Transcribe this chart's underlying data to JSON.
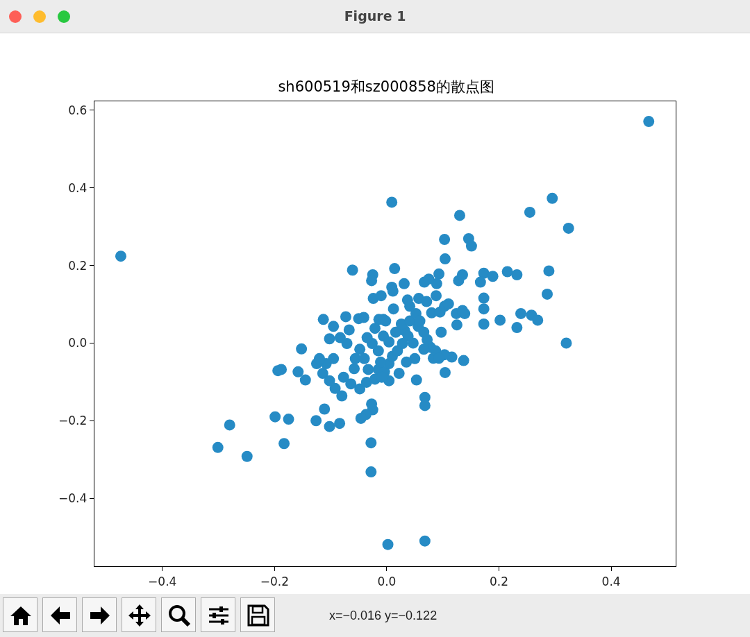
{
  "chart_data": {
    "type": "scatter",
    "title": "sh600519和sz000858的散点图",
    "annotations": [
      "Figure 1",
      "x=−0.016 y=−0.122"
    ],
    "marker": "circle",
    "color": "#268bc5",
    "x": [
      -0.474,
      0.467,
      0.009,
      0.295,
      0.255,
      0.324,
      0.13,
      0.103,
      0.146,
      0.151,
      0.104,
      -0.061,
      -0.025,
      0.014,
      0.215,
      0.232,
      0.289,
      0.286,
      0.32,
      0.202,
      0.232,
      0.239,
      0.258,
      0.269,
      0.173,
      0.189,
      0.173,
      0.173,
      0.173,
      0.137,
      0.104,
      0.053,
      0.068,
      0.068,
      -0.025,
      -0.028,
      -0.028,
      0.002,
      0.068,
      -0.037,
      -0.027,
      -0.102,
      -0.084,
      -0.126,
      -0.111,
      -0.175,
      -0.199,
      -0.183,
      -0.28,
      -0.301,
      -0.249,
      -0.194,
      -0.188,
      -0.152,
      -0.158,
      -0.145,
      -0.113,
      -0.125,
      -0.095,
      -0.073,
      -0.067,
      -0.05,
      -0.041,
      -0.014,
      -0.006,
      0.012,
      0.037,
      0.057,
      0.071,
      0.08,
      0.095,
      0.103,
      0.11,
      0.067,
      0.075,
      0.093,
      0.128,
      0.135,
      0.167,
      0.124,
      0.125,
      0.088,
      0.097,
      0.078,
      0.116,
      0.056,
      -0.027,
      0.009,
      -0.024,
      -0.01,
      -0.095,
      -0.092,
      -0.046,
      0.089,
      0.139,
      0.135,
      0.032,
      0.047,
      0.066,
      0.087,
      0.103,
      0.083,
      0.093,
      0.011,
      0.031,
      -0.108,
      -0.102,
      -0.083,
      -0.12,
      -0.114,
      -0.102,
      -0.08,
      -0.077,
      -0.058,
      -0.064,
      -0.048,
      -0.036,
      -0.021,
      -0.015,
      -0.004,
      0.004,
      0.01,
      0.019,
      -0.015,
      -0.026,
      -0.035,
      -0.048,
      -0.056,
      -0.04,
      -0.006,
      0.004,
      0.016,
      0.026,
      0.041,
      0.052,
      0.066,
      0.038,
      0.028,
      0.05,
      0.004,
      -0.009,
      0.022,
      0.035,
      -0.021,
      -0.002,
      -0.011,
      -0.033,
      -0.071,
      0.041,
      0.059,
      0.072
    ],
    "values": [
      0.224,
      0.571,
      0.363,
      0.373,
      0.337,
      0.296,
      0.329,
      0.267,
      0.269,
      0.25,
      0.217,
      0.188,
      0.176,
      0.192,
      0.184,
      0.176,
      0.186,
      0.126,
      0.0,
      0.059,
      0.04,
      0.076,
      0.072,
      0.059,
      0.18,
      0.172,
      0.116,
      0.088,
      0.049,
      -0.045,
      -0.076,
      -0.095,
      -0.14,
      -0.161,
      -0.172,
      -0.332,
      -0.257,
      -0.519,
      -0.51,
      -0.184,
      -0.157,
      -0.215,
      -0.207,
      -0.2,
      -0.17,
      -0.196,
      -0.19,
      -0.259,
      -0.211,
      -0.269,
      -0.292,
      -0.071,
      -0.068,
      -0.015,
      -0.074,
      -0.095,
      0.061,
      -0.053,
      -0.04,
      0.068,
      0.034,
      0.063,
      0.066,
      0.061,
      0.061,
      0.088,
      0.111,
      0.115,
      0.107,
      0.078,
      0.08,
      0.095,
      0.101,
      0.157,
      0.165,
      0.178,
      0.161,
      0.176,
      0.157,
      0.076,
      0.047,
      0.122,
      0.028,
      -0.011,
      -0.036,
      0.043,
      0.161,
      0.144,
      0.115,
      0.122,
      0.043,
      -0.117,
      -0.194,
      0.153,
      0.076,
      0.084,
      0.032,
      0.0,
      -0.016,
      -0.02,
      -0.03,
      -0.039,
      -0.039,
      0.134,
      0.153,
      -0.053,
      0.011,
      0.014,
      -0.04,
      -0.078,
      -0.097,
      -0.136,
      -0.088,
      -0.066,
      -0.105,
      -0.118,
      -0.101,
      -0.093,
      -0.068,
      -0.074,
      -0.053,
      -0.034,
      -0.02,
      -0.02,
      -0.001,
      0.014,
      -0.016,
      -0.04,
      -0.04,
      0.018,
      0.003,
      0.028,
      0.049,
      0.057,
      0.076,
      0.028,
      0.018,
      -0.001,
      -0.04,
      -0.097,
      -0.088,
      -0.078,
      -0.049,
      0.038,
      0.057,
      -0.049,
      -0.068,
      -0.001,
      0.095,
      0.057,
      0.009
    ],
    "xlim": [
      -0.521,
      0.515
    ],
    "ylim": [
      -0.575,
      0.623
    ],
    "xticks": [
      {
        "value": -0.4,
        "label": "−0.4"
      },
      {
        "value": -0.2,
        "label": "−0.2"
      },
      {
        "value": 0,
        "label": "0.0"
      },
      {
        "value": 0.2,
        "label": "0.2"
      },
      {
        "value": 0.4,
        "label": "0.4"
      }
    ],
    "yticks": [
      {
        "value": -0.4,
        "label": "−0.4"
      },
      {
        "value": -0.2,
        "label": "−0.2"
      },
      {
        "value": 0,
        "label": "0.0"
      },
      {
        "value": 0.2,
        "label": "0.2"
      },
      {
        "value": 0.4,
        "label": "0.4"
      },
      {
        "value": 0.6,
        "label": "0.6"
      }
    ]
  }
}
